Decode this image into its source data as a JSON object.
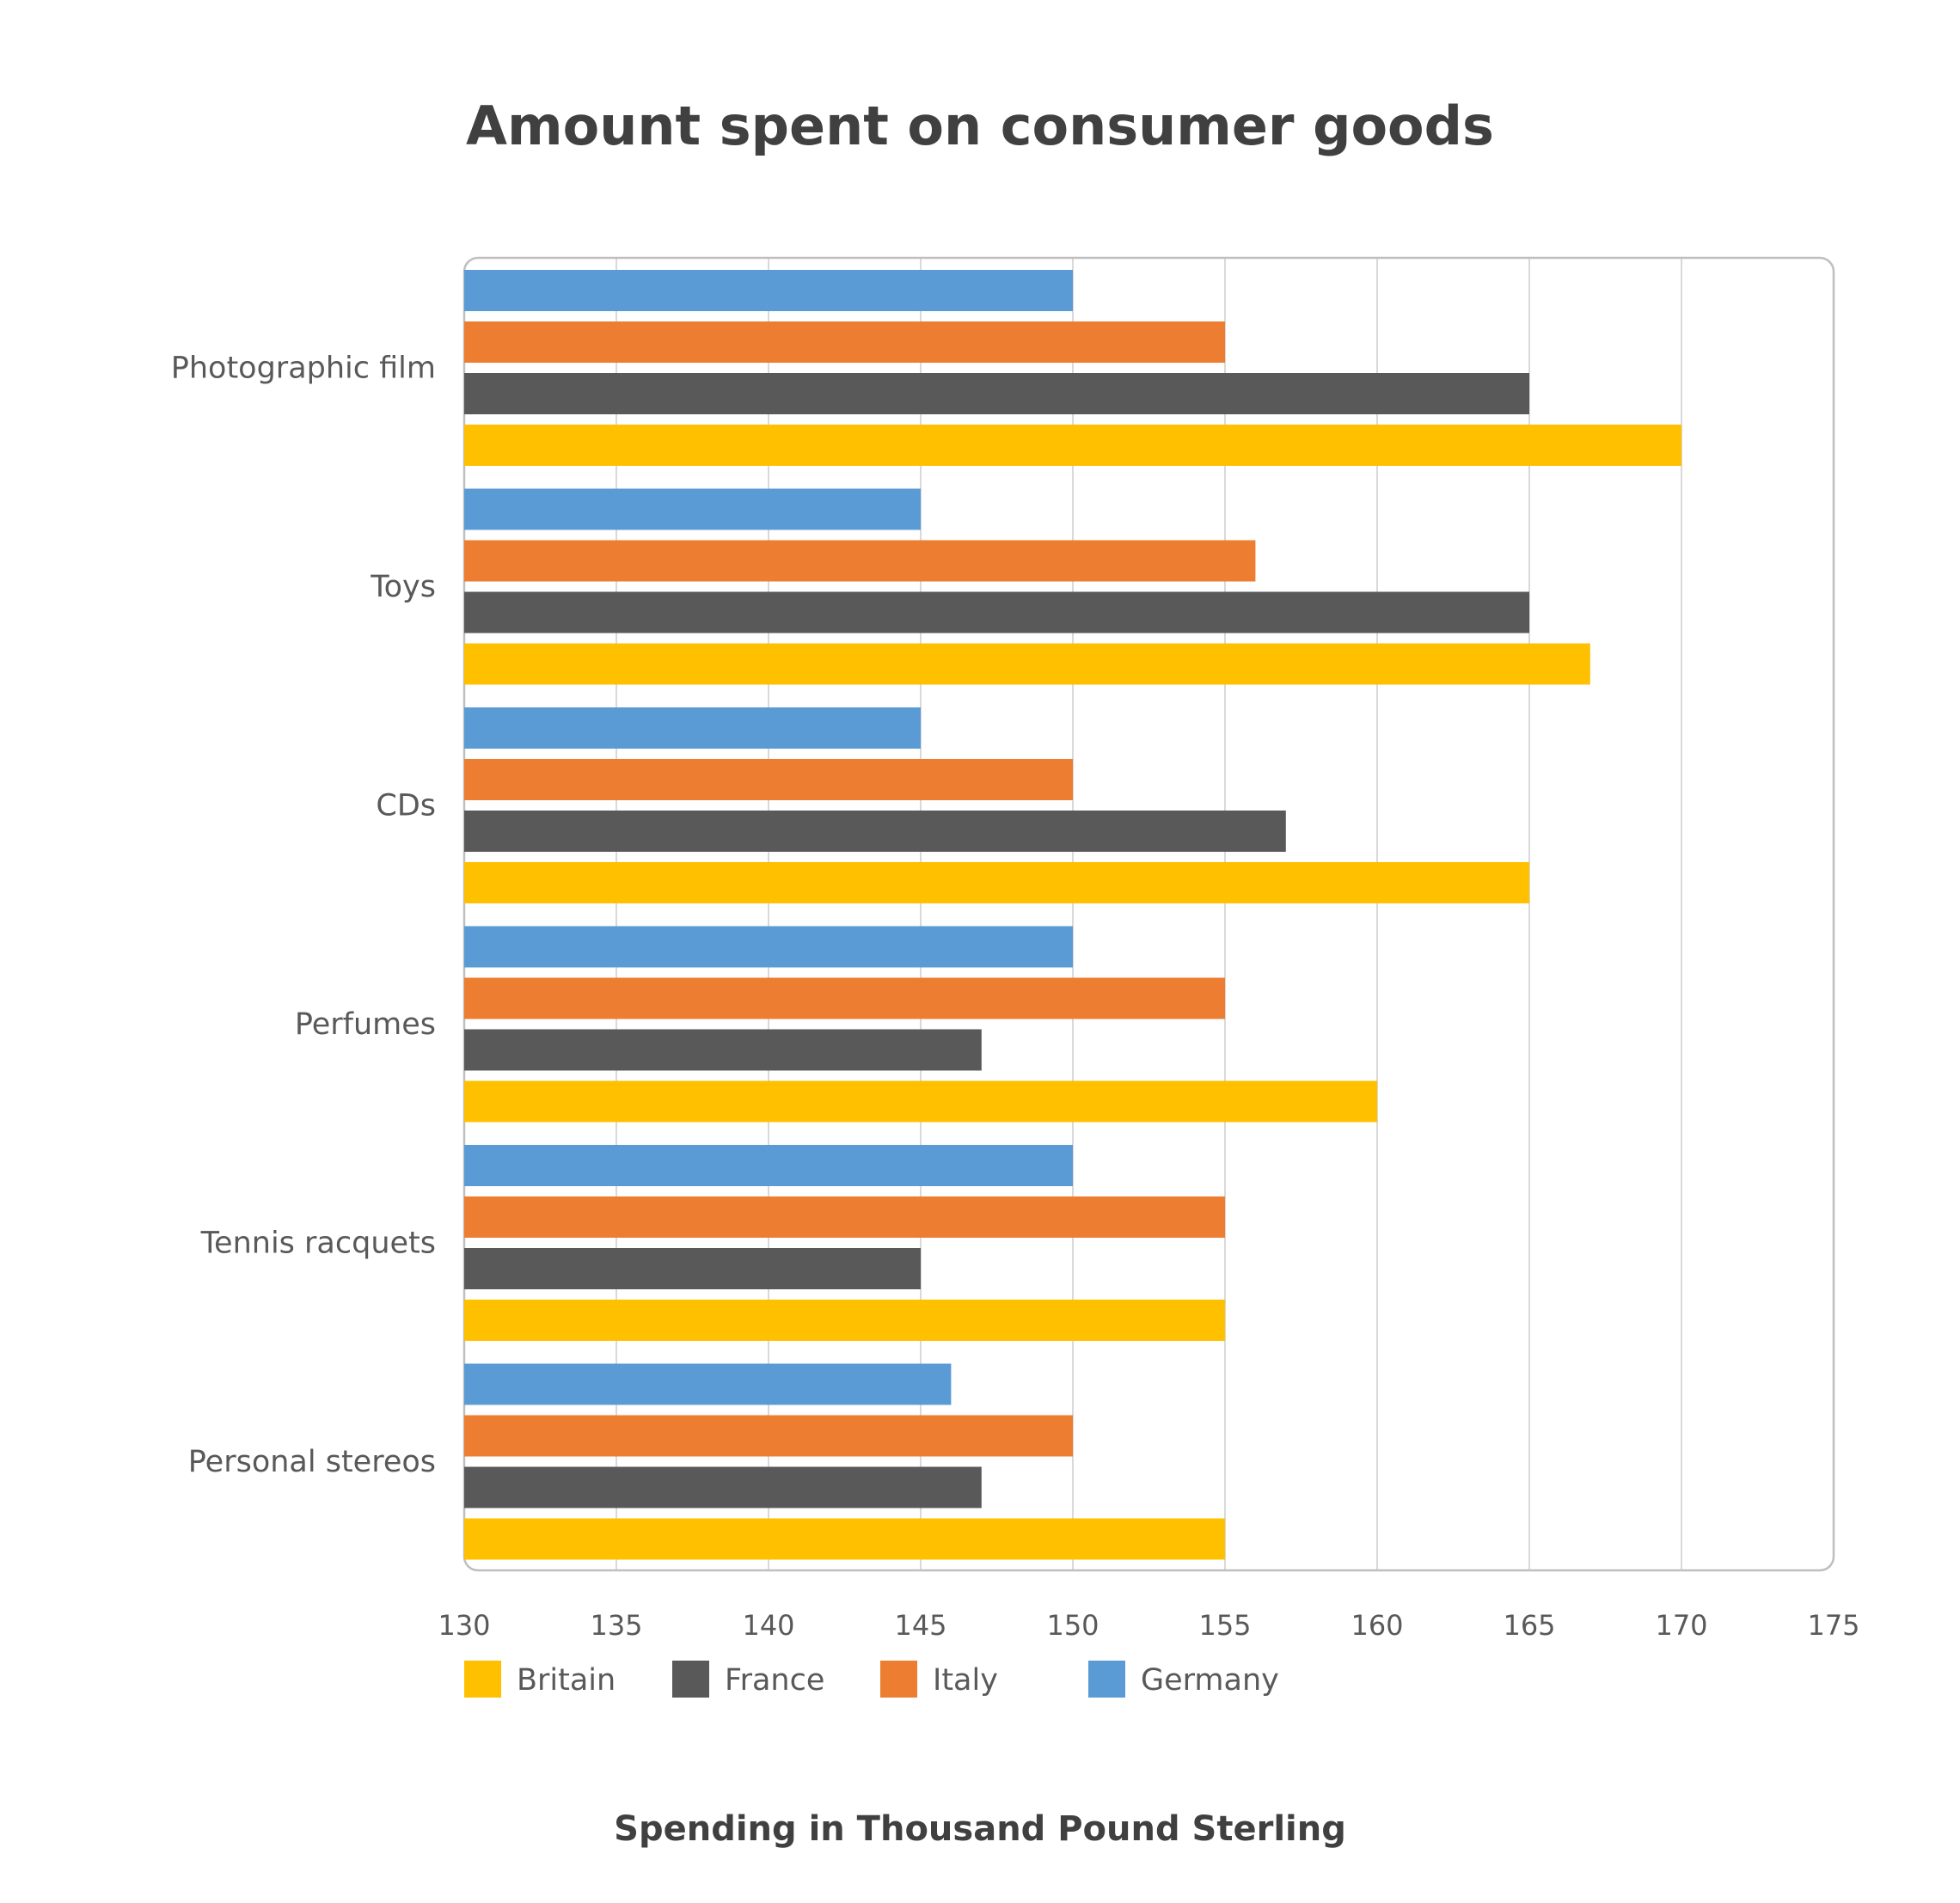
{
  "chart_data": {
    "type": "bar",
    "orientation": "horizontal",
    "title": "Amount spent on consumer goods",
    "xlabel": "Spending in Thousand Pound Sterling",
    "ylabel": "",
    "categories": [
      "Photographic film",
      "Toys",
      "CDs",
      "Perfumes",
      "Tennis racquets",
      "Personal stereos"
    ],
    "series": [
      {
        "name": "Germany",
        "color": "#5b9bd5",
        "values": [
          150,
          145,
          145,
          150,
          150,
          146
        ]
      },
      {
        "name": "Italy",
        "color": "#ed7d31",
        "values": [
          155,
          156,
          150,
          155,
          155,
          150
        ]
      },
      {
        "name": "France",
        "color": "#595959",
        "values": [
          165,
          165,
          157,
          147,
          145,
          147
        ]
      },
      {
        "name": "Britain",
        "color": "#ffc000",
        "values": [
          170,
          167,
          165,
          160,
          155,
          155
        ]
      }
    ],
    "legend_order": [
      "Britain",
      "France",
      "Italy",
      "Germany"
    ],
    "xlim": [
      130,
      175
    ],
    "xticks": [
      130,
      135,
      140,
      145,
      150,
      155,
      160,
      165,
      170,
      175
    ],
    "grid": "vertical",
    "legend_position": "bottom"
  }
}
